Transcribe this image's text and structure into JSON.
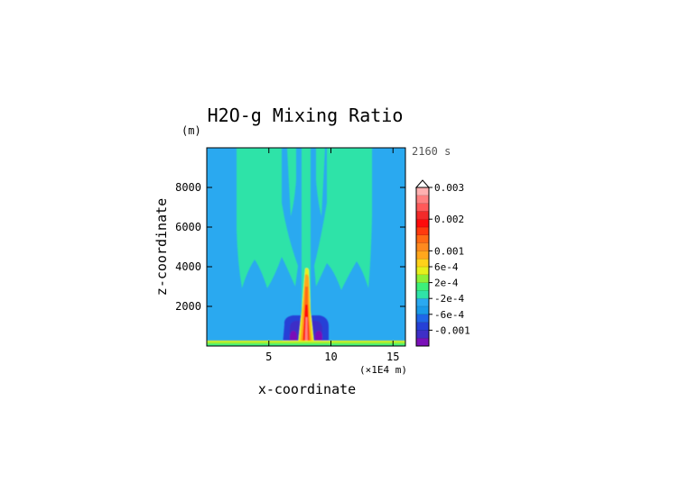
{
  "chart_data": {
    "type": "heatmap",
    "title": "H2O-g Mixing Ratio",
    "y_unit": "(m)",
    "time_label": "2160 s",
    "xlabel": "x-coordinate",
    "ylabel": "z-coordinate",
    "x_unit": "(×1E4 m)",
    "xlim": [
      0,
      16
    ],
    "ylim": [
      0,
      10000
    ],
    "x_ticks": [
      5,
      10,
      15
    ],
    "y_ticks": [
      2000,
      4000,
      6000,
      8000
    ],
    "x_tick_labels": [
      "5",
      "10",
      "15"
    ],
    "y_tick_labels": [
      "2000",
      "4000",
      "6000",
      "8000"
    ],
    "grid": false,
    "background_value_color": "#2aa9f0",
    "colorbar": {
      "levels": [
        {
          "color": "#7a10b8"
        },
        {
          "color": "#3e2fc7"
        },
        {
          "color": "#2640d6"
        },
        {
          "color": "#1f66e8"
        },
        {
          "color": "#1a9ae8"
        },
        {
          "color": "#2aa9f0"
        },
        {
          "color": "#2fe3a8"
        },
        {
          "color": "#3df07a"
        },
        {
          "color": "#8ef038"
        },
        {
          "color": "#e6f01c"
        },
        {
          "color": "#ffd21a"
        },
        {
          "color": "#ffa71c"
        },
        {
          "color": "#ff8a1f"
        },
        {
          "color": "#ff6a14"
        },
        {
          "color": "#ff3a0e"
        },
        {
          "color": "#ff0b0b"
        },
        {
          "color": "#f22a2a"
        },
        {
          "color": "#ff5959"
        },
        {
          "color": "#ff8080"
        },
        {
          "color": "#ffb0b0"
        }
      ],
      "labels": [
        {
          "text": "0.003",
          "level": 20
        },
        {
          "text": "0.002",
          "level": 16
        },
        {
          "text": "0.001",
          "level": 12
        },
        {
          "text": "6e-4",
          "level": 10
        },
        {
          "text": "2e-4",
          "level": 8
        },
        {
          "text": "-2e-4",
          "level": 6
        },
        {
          "text": "-6e-4",
          "level": 4
        },
        {
          "text": "-0.001",
          "level": 2
        }
      ]
    }
  }
}
